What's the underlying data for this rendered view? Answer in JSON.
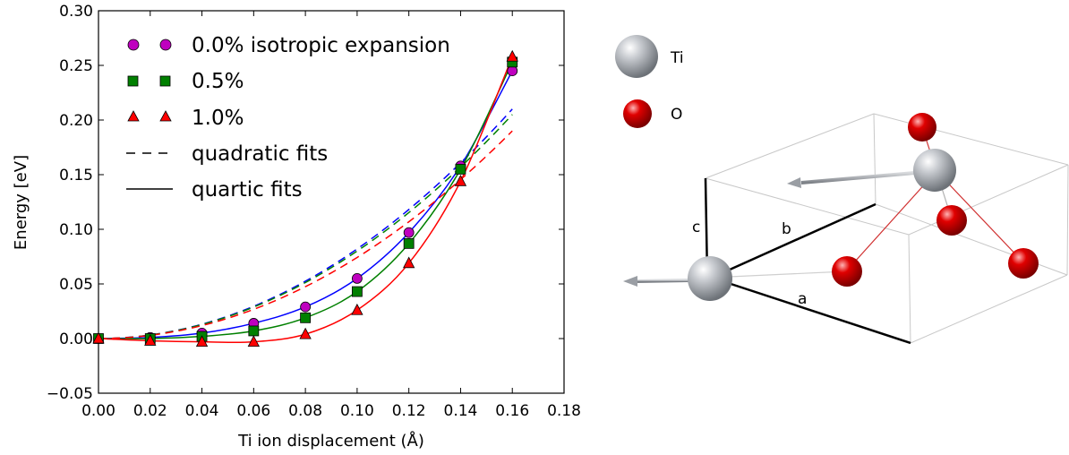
{
  "chart_data": {
    "type": "scatter",
    "xlabel": "Ti ion displacement (Å)",
    "ylabel": "Energy [eV]",
    "xlim": [
      0.0,
      0.18
    ],
    "ylim": [
      -0.05,
      0.3
    ],
    "xticks": [
      "0.00",
      "0.02",
      "0.04",
      "0.06",
      "0.08",
      "0.10",
      "0.12",
      "0.14",
      "0.16",
      "0.18"
    ],
    "yticks": [
      "−0.05",
      "0.00",
      "0.05",
      "0.10",
      "0.15",
      "0.20",
      "0.25",
      "0.30"
    ],
    "grid": false,
    "legend_position": "top-left",
    "x": [
      0.0,
      0.02,
      0.04,
      0.06,
      0.08,
      0.1,
      0.12,
      0.14,
      0.16
    ],
    "series": [
      {
        "name": "0.0% isotropic expansion",
        "marker": "circle",
        "color": "#bf00bf",
        "fit_color": "#0000ff",
        "values": [
          0.0,
          0.001,
          0.005,
          0.014,
          0.029,
          0.055,
          0.097,
          0.158,
          0.245
        ],
        "quadratic_end": 0.21
      },
      {
        "name": "0.5%",
        "marker": "square",
        "color": "#008000",
        "fit_color": "#008000",
        "values": [
          0.0,
          0.0,
          0.002,
          0.007,
          0.019,
          0.043,
          0.087,
          0.155,
          0.253
        ],
        "quadratic_end": 0.205
      },
      {
        "name": "1.0%",
        "marker": "triangle",
        "color": "#ff0000",
        "fit_color": "#ff0000",
        "values": [
          0.0,
          -0.002,
          -0.003,
          -0.003,
          0.004,
          0.026,
          0.069,
          0.144,
          0.258
        ],
        "quadratic_end": 0.19
      }
    ],
    "legend_fits": [
      "quadratic fits",
      "quartic fits"
    ]
  },
  "structure": {
    "legend": [
      {
        "label": "Ti",
        "color": "#b8bcc2"
      },
      {
        "label": "O",
        "color": "#e00000"
      }
    ],
    "axes_labels": {
      "a": "a",
      "b": "b",
      "c": "c"
    }
  }
}
